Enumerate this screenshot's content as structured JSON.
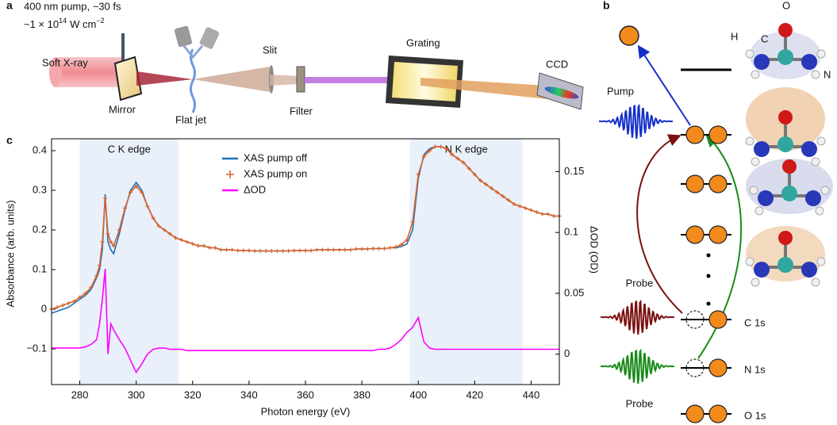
{
  "panel_labels": [
    "a",
    "b",
    "c"
  ],
  "schematic": {
    "pump": "400 nm pump, ~30 fs",
    "intensity": {
      "base": "~1 × 10",
      "exponent": "14",
      "unit": "W cm",
      "unit_exponent": "−2"
    },
    "components": [
      "Soft X-ray",
      "Mirror",
      "Flat jet",
      "Slit",
      "Filter",
      "Grating",
      "CCD"
    ]
  },
  "diagram": {
    "pump": "Pump",
    "probes": [
      "Probe",
      "Probe"
    ],
    "levels": [
      "C 1s",
      "N 1s",
      "O 1s"
    ],
    "atoms": [
      "O",
      "C",
      "H",
      "N"
    ]
  },
  "chart_data": {
    "type": "line",
    "x_label": "Photon energy (eV)",
    "y_label": "Absorbance (arb. units)",
    "y2_label": "ΔOD (OD)",
    "xlim": [
      270,
      450
    ],
    "xticks": [
      280,
      300,
      320,
      340,
      360,
      380,
      400,
      420,
      440
    ],
    "ylim": [
      -0.19,
      0.43
    ],
    "yticks": [
      {
        "value": -0.1,
        "label": "−0.1"
      },
      0,
      0.1,
      0.2,
      0.3,
      0.4
    ],
    "y2lim": [
      -0.025,
      0.177
    ],
    "y2ticks": [
      0,
      0.05,
      0.1,
      0.15
    ],
    "grid": false,
    "shaded_regions": [
      {
        "label": "C K edge",
        "range": [
          280,
          315
        ],
        "color": "#e9f0fa"
      },
      {
        "label": "N K edge",
        "range": [
          397,
          437
        ],
        "color": "#e9f0fa"
      }
    ],
    "x": [
      270,
      272,
      274,
      276,
      278,
      280,
      282,
      284,
      286,
      287,
      288,
      289,
      290,
      291,
      292,
      294,
      296,
      298,
      300,
      302,
      304,
      306,
      308,
      310,
      312,
      314,
      316,
      318,
      320,
      322,
      324,
      326,
      328,
      330,
      332,
      334,
      336,
      338,
      340,
      342,
      344,
      346,
      348,
      350,
      352,
      354,
      356,
      358,
      360,
      362,
      364,
      366,
      368,
      370,
      372,
      374,
      376,
      378,
      380,
      382,
      384,
      386,
      388,
      390,
      392,
      394,
      396,
      398,
      400,
      402,
      404,
      406,
      408,
      410,
      412,
      414,
      416,
      418,
      420,
      422,
      424,
      426,
      428,
      430,
      432,
      434,
      436,
      438,
      440,
      442,
      444,
      446,
      448,
      450
    ],
    "series": [
      {
        "name": "XAS pump off",
        "color": "#1f6fb4",
        "values": [
          -0.01,
          -0.005,
          0,
          0.005,
          0.015,
          0.025,
          0.035,
          0.05,
          0.08,
          0.1,
          0.15,
          0.29,
          0.17,
          0.15,
          0.14,
          0.19,
          0.25,
          0.3,
          0.32,
          0.3,
          0.26,
          0.23,
          0.21,
          0.2,
          0.19,
          0.18,
          0.175,
          0.17,
          0.165,
          0.16,
          0.16,
          0.155,
          0.155,
          0.15,
          0.15,
          0.15,
          0.148,
          0.148,
          0.148,
          0.147,
          0.147,
          0.147,
          0.147,
          0.147,
          0.147,
          0.147,
          0.148,
          0.148,
          0.148,
          0.148,
          0.15,
          0.15,
          0.15,
          0.15,
          0.15,
          0.15,
          0.15,
          0.152,
          0.152,
          0.152,
          0.153,
          0.153,
          0.153,
          0.155,
          0.155,
          0.158,
          0.165,
          0.2,
          0.33,
          0.39,
          0.405,
          0.41,
          0.41,
          0.405,
          0.39,
          0.38,
          0.37,
          0.355,
          0.34,
          0.325,
          0.315,
          0.305,
          0.295,
          0.285,
          0.275,
          0.265,
          0.26,
          0.255,
          0.25,
          0.245,
          0.24,
          0.24,
          0.235,
          0.235
        ]
      },
      {
        "name": "XAS pump on",
        "color": "#d9622b",
        "marker": "plus",
        "values": [
          0,
          0.005,
          0.01,
          0.015,
          0.02,
          0.03,
          0.04,
          0.055,
          0.085,
          0.11,
          0.17,
          0.28,
          0.19,
          0.17,
          0.16,
          0.2,
          0.255,
          0.295,
          0.31,
          0.295,
          0.26,
          0.23,
          0.21,
          0.2,
          0.19,
          0.18,
          0.175,
          0.17,
          0.165,
          0.16,
          0.16,
          0.155,
          0.155,
          0.15,
          0.15,
          0.15,
          0.148,
          0.148,
          0.148,
          0.147,
          0.147,
          0.147,
          0.147,
          0.147,
          0.147,
          0.147,
          0.148,
          0.148,
          0.148,
          0.148,
          0.15,
          0.15,
          0.15,
          0.15,
          0.15,
          0.15,
          0.15,
          0.152,
          0.152,
          0.152,
          0.153,
          0.153,
          0.153,
          0.155,
          0.157,
          0.163,
          0.175,
          0.22,
          0.34,
          0.385,
          0.4,
          0.41,
          0.41,
          0.405,
          0.39,
          0.38,
          0.37,
          0.355,
          0.34,
          0.325,
          0.315,
          0.305,
          0.295,
          0.285,
          0.275,
          0.265,
          0.26,
          0.255,
          0.25,
          0.245,
          0.24,
          0.24,
          0.235,
          0.235
        ]
      },
      {
        "name": "ΔOD",
        "color": "#ff00ff",
        "axis": "y2",
        "values": [
          0.005,
          0.005,
          0.005,
          0.005,
          0.005,
          0.005,
          0.006,
          0.008,
          0.012,
          0.025,
          0.045,
          0.07,
          0.0,
          0.025,
          0.02,
          0.012,
          0.005,
          -0.005,
          -0.015,
          -0.008,
          0.0,
          0.004,
          0.005,
          0.005,
          0.004,
          0.004,
          0.004,
          0.003,
          0.003,
          0.003,
          0.003,
          0.003,
          0.003,
          0.003,
          0.003,
          0.003,
          0.003,
          0.003,
          0.003,
          0.003,
          0.003,
          0.003,
          0.003,
          0.003,
          0.003,
          0.003,
          0.003,
          0.003,
          0.003,
          0.003,
          0.003,
          0.003,
          0.003,
          0.003,
          0.003,
          0.003,
          0.003,
          0.003,
          0.003,
          0.003,
          0.003,
          0.004,
          0.004,
          0.005,
          0.008,
          0.012,
          0.018,
          0.022,
          0.03,
          0.01,
          0.005,
          0.004,
          0.004,
          0.004,
          0.004,
          0.004,
          0.004,
          0.004,
          0.004,
          0.004,
          0.004,
          0.004,
          0.004,
          0.004,
          0.004,
          0.004,
          0.004,
          0.004,
          0.004,
          0.004,
          0.004,
          0.004,
          0.004,
          0.004
        ]
      }
    ]
  }
}
